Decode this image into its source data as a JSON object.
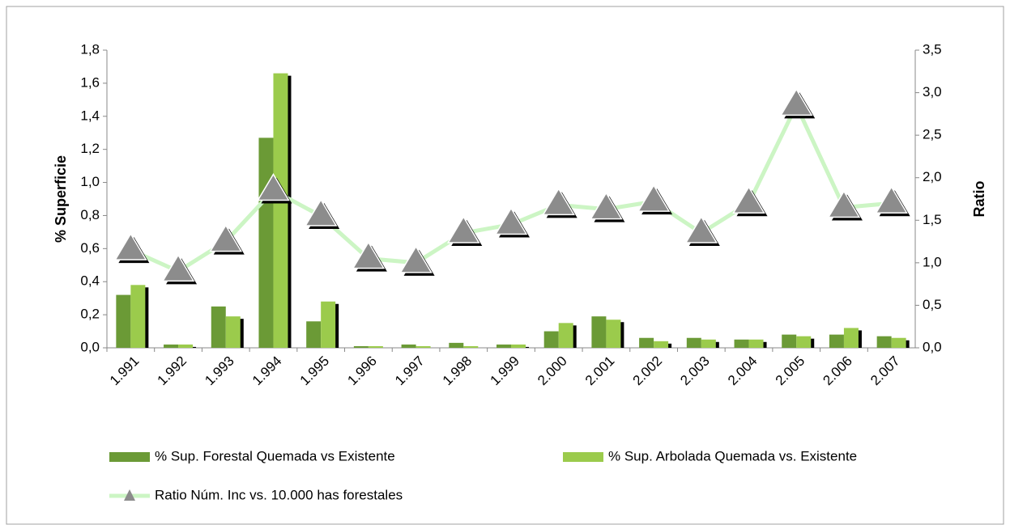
{
  "chart_data": {
    "type": "bar-line",
    "categories": [
      "1.991",
      "1.992",
      "1.993",
      "1.994",
      "1.995",
      "1.996",
      "1.997",
      "1.998",
      "1.999",
      "2.000",
      "2.001",
      "2.002",
      "2.003",
      "2.004",
      "2.005",
      "2.006",
      "2.007"
    ],
    "ylabel": "% Superficie",
    "y2label": "Ratio",
    "series": [
      {
        "name": "% Sup. Forestal Quemada vs Existente",
        "color": "#6b9a36",
        "type": "bar",
        "values": [
          0.32,
          0.02,
          0.25,
          1.27,
          0.16,
          0.01,
          0.02,
          0.03,
          0.02,
          0.1,
          0.19,
          0.06,
          0.06,
          0.05,
          0.08,
          0.08,
          0.07
        ]
      },
      {
        "name": "% Sup. Arbolada Quemada vs. Existente",
        "color": "#9bcb4c",
        "type": "bar",
        "values": [
          0.38,
          0.02,
          0.19,
          1.66,
          0.28,
          0.01,
          0.01,
          0.01,
          0.02,
          0.15,
          0.17,
          0.04,
          0.05,
          0.05,
          0.07,
          0.12,
          0.06
        ]
      },
      {
        "name": "Ratio Núm. Inc vs. 10.000 has forestales",
        "color": "#ccf5c4",
        "marker_color": "#8c8c8c",
        "type": "line",
        "axis": "y2",
        "values": [
          1.15,
          0.9,
          1.25,
          1.85,
          1.55,
          1.05,
          1.0,
          1.35,
          1.45,
          1.68,
          1.63,
          1.72,
          1.35,
          1.7,
          2.85,
          1.65,
          1.7
        ]
      }
    ],
    "ylim": [
      0,
      1.8
    ],
    "yticks": [
      {
        "value": 0,
        "label": "0,0"
      },
      {
        "value": 0.2,
        "label": "0,2"
      },
      {
        "value": 0.4,
        "label": "0,4"
      },
      {
        "value": 0.6,
        "label": "0,6"
      },
      {
        "value": 0.8,
        "label": "0,8"
      },
      {
        "value": 1.0,
        "label": "1,0"
      },
      {
        "value": 1.2,
        "label": "1,2"
      },
      {
        "value": 1.4,
        "label": "1,4"
      },
      {
        "value": 1.6,
        "label": "1,6"
      },
      {
        "value": 1.8,
        "label": "1,8"
      }
    ],
    "y2lim": [
      0,
      3.5
    ],
    "y2ticks": [
      {
        "value": 0,
        "label": "0,0"
      },
      {
        "value": 0.5,
        "label": "0,5"
      },
      {
        "value": 1.0,
        "label": "1,0"
      },
      {
        "value": 1.5,
        "label": "1,5"
      },
      {
        "value": 2.0,
        "label": "2,0"
      },
      {
        "value": 2.5,
        "label": "2,5"
      },
      {
        "value": 3.0,
        "label": "3,0"
      },
      {
        "value": 3.5,
        "label": "3,5"
      }
    ]
  }
}
